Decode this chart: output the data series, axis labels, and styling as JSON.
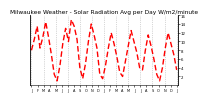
{
  "title": "Milwaukee Weather - Solar Radiation Avg per Day W/m2/minute",
  "title_fontsize": 4.2,
  "background_color": "#ffffff",
  "line_color": "#ff0000",
  "line_width": 1.0,
  "ylim": [
    0,
    16
  ],
  "yticks": [
    2,
    4,
    6,
    8,
    10,
    12,
    14,
    16
  ],
  "ytick_labels": [
    "2",
    "4",
    "6",
    "8",
    "10",
    "12",
    "14",
    "16"
  ],
  "grid_color": "#b0b0b0",
  "grid_linestyle": ":",
  "grid_linewidth": 0.5,
  "num_grid_lines": 13,
  "x_labels": [
    "J",
    "F",
    "M",
    "A",
    "M",
    "J",
    "J",
    "A",
    "S",
    "O",
    "N",
    "D",
    "J",
    "F",
    "M",
    "A",
    "M",
    "J",
    "J",
    "A",
    "S",
    "O",
    "N",
    "D",
    "J"
  ],
  "data": [
    8.0,
    10.5,
    13.5,
    8.5,
    11.0,
    14.5,
    11.0,
    7.0,
    2.5,
    1.0,
    4.5,
    9.5,
    13.0,
    10.0,
    15.0,
    13.5,
    10.5,
    4.0,
    1.5,
    5.0,
    10.0,
    14.0,
    11.5,
    8.5,
    2.5,
    1.5,
    4.5,
    8.5,
    12.0,
    9.5,
    6.5,
    3.0,
    2.0,
    5.5,
    9.0,
    12.5,
    10.0,
    7.5,
    4.0,
    3.5,
    8.0,
    11.5,
    9.0,
    6.0,
    2.5,
    1.0,
    4.0,
    8.5,
    12.0,
    9.5,
    7.0,
    3.5
  ]
}
